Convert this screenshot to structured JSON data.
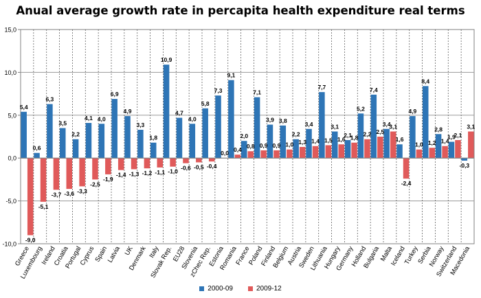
{
  "chart_data": {
    "type": "bar",
    "title": "Anual average growth rate in percapita health expenditure real terms",
    "xlabel": "",
    "ylabel": "",
    "ylim": [
      -10,
      15
    ],
    "yticks": [
      "-10,0",
      "-5,0",
      "0,0",
      "5,0",
      "10,0",
      "15,0"
    ],
    "grid": true,
    "legend": "bottom",
    "categories": [
      "Greece",
      "Luxembourg",
      "Ireland",
      "Croatia",
      "Portugal",
      "Cyprus",
      "Spain",
      "Latvia",
      "UK",
      "Denmark",
      "Italy",
      "Slovak Rep.",
      "EU28",
      "Slovenia",
      "zChec Rep.",
      "Estonia",
      "Romania",
      "France",
      "Poland",
      "Finland",
      "Belgium",
      "Austria",
      "Sweden",
      "Lithuania",
      "Hungary",
      "Germany",
      "Holland",
      "Bulgaria",
      "Malta",
      "Iceland",
      "Turkey",
      "Serbia",
      "Norway",
      "Switzerland",
      "Macedonia"
    ],
    "series": [
      {
        "name": "2000-09",
        "color": "#2e75b6",
        "values": [
          5.4,
          0.6,
          6.3,
          3.5,
          2.2,
          4.1,
          4.0,
          6.9,
          4.9,
          3.3,
          1.8,
          10.9,
          4.7,
          4.0,
          5.8,
          7.3,
          9.1,
          2.0,
          7.1,
          3.9,
          3.8,
          2.2,
          3.4,
          7.7,
          3.1,
          2.1,
          5.2,
          7.4,
          3.4,
          1.6,
          4.9,
          8.4,
          2.8,
          1.9,
          -0.3
        ],
        "labels": [
          "5,4",
          "0,6",
          "6,3",
          "3,5",
          "2,2",
          "4,1",
          "4,0",
          "6,9",
          "4,9",
          "3,3",
          "1,8",
          "10,9",
          "4,7",
          "4,0",
          "5,8",
          "7,3",
          "9,1",
          "2,0",
          "7,1",
          "3,9",
          "3,8",
          "2,2",
          "3,4",
          "7,7",
          "3,1",
          "2,1",
          "5,2",
          "7,4",
          "3,4",
          "1,6",
          "4,9",
          "8,4",
          "2,8",
          "1,9",
          "-0,3"
        ]
      },
      {
        "name": "2009-12",
        "color": "#e05a5a",
        "values": [
          -9.0,
          -5.1,
          -3.7,
          -3.6,
          -3.3,
          -2.5,
          -1.9,
          -1.4,
          -1.3,
          -1.2,
          -1.1,
          -1.0,
          -0.6,
          -0.5,
          -0.4,
          0.0,
          0.4,
          0.8,
          0.9,
          0.9,
          1.0,
          1.3,
          1.4,
          1.5,
          1.6,
          1.8,
          2.2,
          2.5,
          3.1,
          -2.4,
          1.0,
          1.2,
          1.4,
          2.1,
          3.1
        ],
        "labels": [
          "-9,0",
          "-5,1",
          "-3,7",
          "-3,6",
          "-3,3",
          "-2,5",
          "-1,9",
          "-1,4",
          "-1,3",
          "-1,2",
          "-1,1",
          "-1,0",
          "-0,6",
          "-0,5",
          "-0,4",
          "0,0",
          "0,4",
          "0,8",
          "0,9",
          "0,9",
          "1,0",
          "1,3",
          "1,4",
          "1,5",
          "1,6",
          "1,8",
          "2,2",
          "2,5",
          "3,1",
          "-2,4",
          "1,0",
          "1,2",
          "1,4",
          "2,1",
          "3,1"
        ]
      }
    ]
  }
}
